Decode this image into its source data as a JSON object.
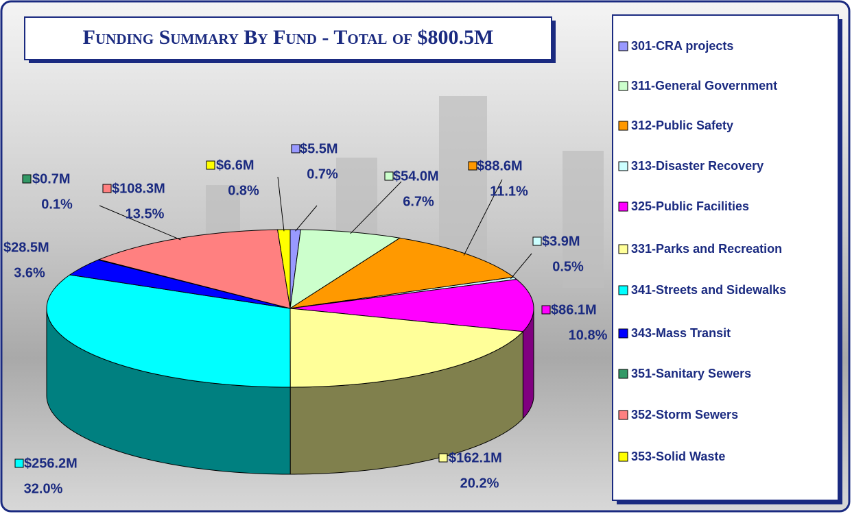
{
  "chart_data": {
    "type": "pie",
    "title": "Funding Summary By Fund - Total of $800.5M",
    "categories": [
      "301-CRA projects",
      "311-General Government",
      "312-Public Safety",
      "313-Disaster Recovery",
      "325-Public Facilities",
      "331-Parks and Recreation",
      "341-Streets and Sidewalks",
      "343-Mass Transit",
      "351-Sanitary Sewers",
      "352-Storm Sewers",
      "353-Solid Waste"
    ],
    "values": [
      5.5,
      54.0,
      88.6,
      3.9,
      86.1,
      162.1,
      256.2,
      28.5,
      0.7,
      108.3,
      6.6
    ],
    "value_labels": [
      "$5.5M",
      "$54.0M",
      "$88.6M",
      "$3.9M",
      "$86.1M",
      "$162.1M",
      "$256.2M",
      "$28.5M",
      "$0.7M",
      "$108.3M",
      "$6.6M"
    ],
    "percentages": [
      0.7,
      6.7,
      11.1,
      0.5,
      10.8,
      20.2,
      32.0,
      3.6,
      0.1,
      13.5,
      0.8
    ],
    "percentage_labels": [
      "0.7%",
      "6.7%",
      "11.1%",
      "0.5%",
      "10.8%",
      "20.2%",
      "32.0%",
      "3.6%",
      "0.1%",
      "13.5%",
      "0.8%"
    ],
    "colors": [
      "#9999ff",
      "#ccffcc",
      "#ff9900",
      "#ccffff",
      "#ff00ff",
      "#ffff99",
      "#00ffff",
      "#0000ff",
      "#339966",
      "#ff8080",
      "#ffff00"
    ],
    "legend": "right"
  }
}
